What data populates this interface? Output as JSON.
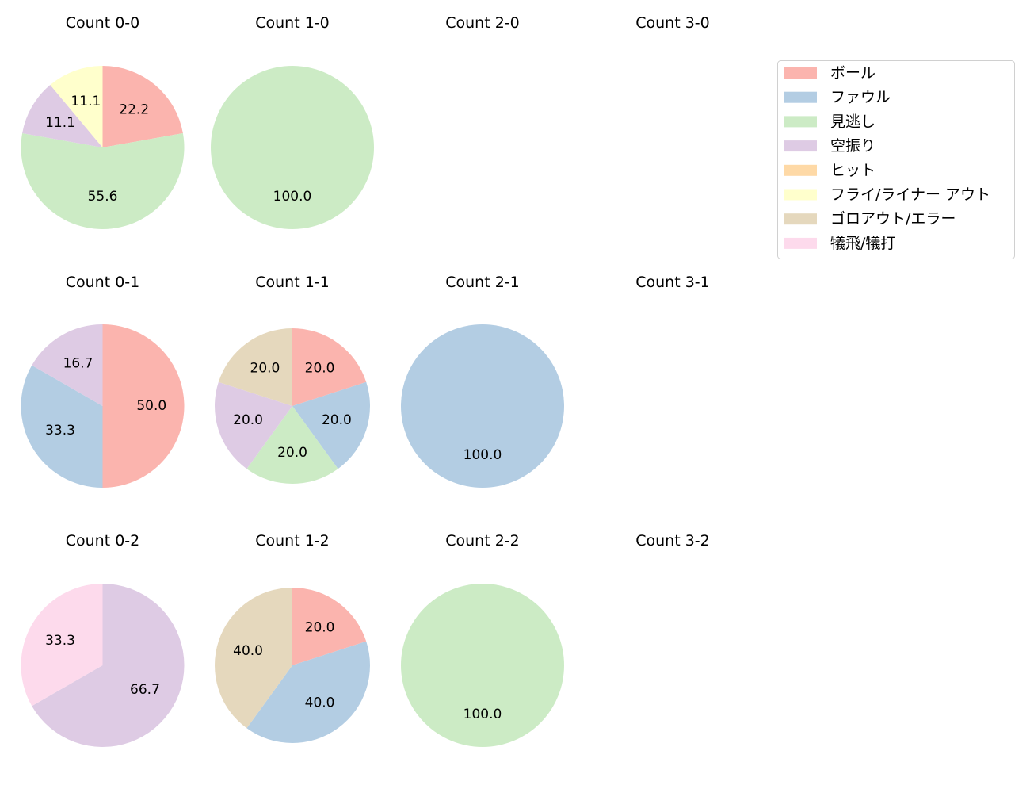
{
  "legend": {
    "location": "upper-right",
    "entries": [
      {
        "label": "ボール",
        "color": "#fbb4ae"
      },
      {
        "label": "ファウル",
        "color": "#b3cde3"
      },
      {
        "label": "見逃し",
        "color": "#ccebc5"
      },
      {
        "label": "空振り",
        "color": "#decbe4"
      },
      {
        "label": "ヒット",
        "color": "#fed9a6"
      },
      {
        "label": "フライ/ライナー アウト",
        "color": "#ffffcc"
      },
      {
        "label": "ゴロアウト/エラー",
        "color": "#e5d8bd"
      },
      {
        "label": "犠飛/犠打",
        "color": "#fddaec"
      }
    ]
  },
  "chart_data": [
    {
      "type": "pie",
      "title": "Count 0-0",
      "categories": [
        "ボール",
        "見逃し",
        "空振り",
        "フライ/ライナー アウト"
      ],
      "values": [
        22.2,
        55.6,
        11.1,
        11.1
      ]
    },
    {
      "type": "pie",
      "title": "Count 1-0",
      "categories": [
        "見逃し"
      ],
      "values": [
        100.0
      ]
    },
    {
      "type": "pie",
      "title": "Count 2-0",
      "categories": [],
      "values": []
    },
    {
      "type": "pie",
      "title": "Count 3-0",
      "categories": [],
      "values": []
    },
    {
      "type": "pie",
      "title": "Count 0-1",
      "categories": [
        "ボール",
        "ファウル",
        "空振り"
      ],
      "values": [
        50.0,
        33.3,
        16.7
      ]
    },
    {
      "type": "pie",
      "title": "Count 1-1",
      "categories": [
        "ボール",
        "ファウル",
        "見逃し",
        "空振り",
        "ゴロアウト/エラー"
      ],
      "values": [
        20.0,
        20.0,
        20.0,
        20.0,
        20.0
      ]
    },
    {
      "type": "pie",
      "title": "Count 2-1",
      "categories": [
        "ファウル"
      ],
      "values": [
        100.0
      ]
    },
    {
      "type": "pie",
      "title": "Count 3-1",
      "categories": [],
      "values": []
    },
    {
      "type": "pie",
      "title": "Count 0-2",
      "categories": [
        "空振り",
        "犠飛/犠打"
      ],
      "values": [
        66.7,
        33.3
      ]
    },
    {
      "type": "pie",
      "title": "Count 1-2",
      "categories": [
        "ボール",
        "ファウル",
        "ゴロアウト/エラー"
      ],
      "values": [
        20.0,
        40.0,
        40.0
      ]
    },
    {
      "type": "pie",
      "title": "Count 2-2",
      "categories": [
        "見逃し"
      ],
      "values": [
        100.0
      ]
    },
    {
      "type": "pie",
      "title": "Count 3-2",
      "categories": [],
      "values": []
    }
  ]
}
